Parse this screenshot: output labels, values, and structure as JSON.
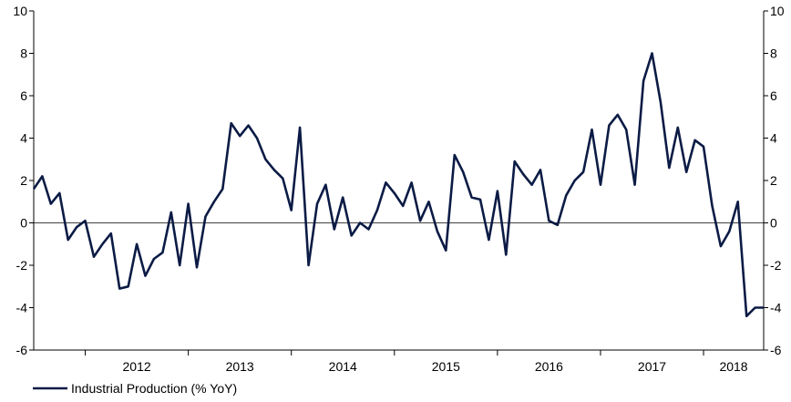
{
  "chart_data": {
    "type": "line",
    "title": "",
    "xlabel": "",
    "ylabel": "",
    "ylim": [
      -6,
      10
    ],
    "yticks": [
      -6,
      -4,
      -2,
      0,
      2,
      4,
      6,
      8,
      10
    ],
    "ytick_labels": [
      "-6",
      "-4",
      "-2",
      "0",
      "2",
      "4",
      "6",
      "8",
      "10"
    ],
    "dual_y_axis": true,
    "grid": false,
    "zero_line": true,
    "legend_position": "bottom-left",
    "x_categories": [
      "2012",
      "2013",
      "2014",
      "2015",
      "2016",
      "2017",
      "2018"
    ],
    "x_start": "2011-07",
    "x_end": "2018-08",
    "series": [
      {
        "name": "Industrial Production (% YoY)",
        "color": "#0b1b45",
        "x": [
          "2011-07",
          "2011-08",
          "2011-09",
          "2011-10",
          "2011-11",
          "2011-12",
          "2012-01",
          "2012-02",
          "2012-03",
          "2012-04",
          "2012-05",
          "2012-06",
          "2012-07",
          "2012-08",
          "2012-09",
          "2012-10",
          "2012-11",
          "2012-12",
          "2013-01",
          "2013-02",
          "2013-03",
          "2013-04",
          "2013-05",
          "2013-06",
          "2013-07",
          "2013-08",
          "2013-09",
          "2013-10",
          "2013-11",
          "2013-12",
          "2014-01",
          "2014-02",
          "2014-03",
          "2014-04",
          "2014-05",
          "2014-06",
          "2014-07",
          "2014-08",
          "2014-09",
          "2014-10",
          "2014-11",
          "2014-12",
          "2015-01",
          "2015-02",
          "2015-03",
          "2015-04",
          "2015-05",
          "2015-06",
          "2015-07",
          "2015-08",
          "2015-09",
          "2015-10",
          "2015-11",
          "2015-12",
          "2016-01",
          "2016-02",
          "2016-03",
          "2016-04",
          "2016-05",
          "2016-06",
          "2016-07",
          "2016-08",
          "2016-09",
          "2016-10",
          "2016-11",
          "2016-12",
          "2017-01",
          "2017-02",
          "2017-03",
          "2017-04",
          "2017-05",
          "2017-06",
          "2017-07",
          "2017-08",
          "2017-09",
          "2017-10",
          "2017-11",
          "2017-12",
          "2018-01",
          "2018-02",
          "2018-03",
          "2018-04",
          "2018-05",
          "2018-06",
          "2018-07",
          "2018-08"
        ],
        "values": [
          1.6,
          2.2,
          0.9,
          1.4,
          -0.8,
          -0.2,
          0.1,
          -1.6,
          -1.0,
          -0.5,
          -3.1,
          -3.0,
          -1.0,
          -2.5,
          -1.7,
          -1.4,
          0.5,
          -2.0,
          0.9,
          -2.1,
          0.3,
          1.0,
          1.6,
          4.7,
          4.1,
          4.6,
          4.0,
          3.0,
          2.5,
          2.1,
          0.6,
          4.5,
          -2.0,
          0.9,
          1.8,
          -0.3,
          1.2,
          -0.6,
          0.0,
          -0.3,
          0.6,
          1.9,
          1.4,
          0.8,
          1.9,
          0.1,
          1.0,
          -0.4,
          -1.3,
          3.2,
          2.4,
          1.2,
          1.1,
          -0.8,
          1.5,
          -1.5,
          2.9,
          2.3,
          1.8,
          2.5,
          0.1,
          -0.1,
          1.3,
          2.0,
          2.4,
          4.4,
          1.8,
          4.6,
          5.1,
          4.4,
          1.8,
          6.7,
          8.0,
          5.7,
          2.6,
          4.5,
          2.4,
          3.9,
          3.6,
          0.8,
          -1.1,
          -0.4,
          1.0,
          -4.4,
          -4.0,
          -4.0
        ]
      }
    ]
  }
}
